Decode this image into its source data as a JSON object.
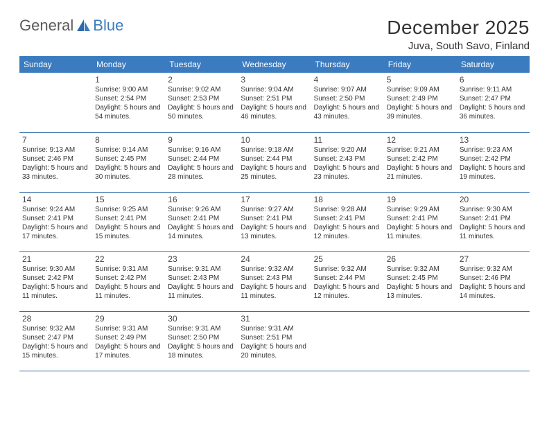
{
  "logo": {
    "text1": "General",
    "text2": "Blue"
  },
  "header": {
    "month": "December 2025",
    "location": "Juva, South Savo, Finland"
  },
  "colors": {
    "header_bg": "#3b7bbf",
    "header_text": "#ffffff",
    "row_border": "#2f6aa8",
    "body_text": "#333333",
    "logo_gray": "#5a5a5a",
    "logo_blue": "#3b7bbf",
    "page_bg": "#ffffff"
  },
  "fonts": {
    "month_size_pt": 21,
    "location_size_pt": 11,
    "weekday_size_pt": 9,
    "daynum_size_pt": 9,
    "cell_size_pt": 7.5
  },
  "calendar": {
    "weekdays": [
      "Sunday",
      "Monday",
      "Tuesday",
      "Wednesday",
      "Thursday",
      "Friday",
      "Saturday"
    ],
    "weeks": [
      [
        null,
        {
          "n": "1",
          "sr": "Sunrise: 9:00 AM",
          "ss": "Sunset: 2:54 PM",
          "dl": "Daylight: 5 hours and 54 minutes."
        },
        {
          "n": "2",
          "sr": "Sunrise: 9:02 AM",
          "ss": "Sunset: 2:53 PM",
          "dl": "Daylight: 5 hours and 50 minutes."
        },
        {
          "n": "3",
          "sr": "Sunrise: 9:04 AM",
          "ss": "Sunset: 2:51 PM",
          "dl": "Daylight: 5 hours and 46 minutes."
        },
        {
          "n": "4",
          "sr": "Sunrise: 9:07 AM",
          "ss": "Sunset: 2:50 PM",
          "dl": "Daylight: 5 hours and 43 minutes."
        },
        {
          "n": "5",
          "sr": "Sunrise: 9:09 AM",
          "ss": "Sunset: 2:49 PM",
          "dl": "Daylight: 5 hours and 39 minutes."
        },
        {
          "n": "6",
          "sr": "Sunrise: 9:11 AM",
          "ss": "Sunset: 2:47 PM",
          "dl": "Daylight: 5 hours and 36 minutes."
        }
      ],
      [
        {
          "n": "7",
          "sr": "Sunrise: 9:13 AM",
          "ss": "Sunset: 2:46 PM",
          "dl": "Daylight: 5 hours and 33 minutes."
        },
        {
          "n": "8",
          "sr": "Sunrise: 9:14 AM",
          "ss": "Sunset: 2:45 PM",
          "dl": "Daylight: 5 hours and 30 minutes."
        },
        {
          "n": "9",
          "sr": "Sunrise: 9:16 AM",
          "ss": "Sunset: 2:44 PM",
          "dl": "Daylight: 5 hours and 28 minutes."
        },
        {
          "n": "10",
          "sr": "Sunrise: 9:18 AM",
          "ss": "Sunset: 2:44 PM",
          "dl": "Daylight: 5 hours and 25 minutes."
        },
        {
          "n": "11",
          "sr": "Sunrise: 9:20 AM",
          "ss": "Sunset: 2:43 PM",
          "dl": "Daylight: 5 hours and 23 minutes."
        },
        {
          "n": "12",
          "sr": "Sunrise: 9:21 AM",
          "ss": "Sunset: 2:42 PM",
          "dl": "Daylight: 5 hours and 21 minutes."
        },
        {
          "n": "13",
          "sr": "Sunrise: 9:23 AM",
          "ss": "Sunset: 2:42 PM",
          "dl": "Daylight: 5 hours and 19 minutes."
        }
      ],
      [
        {
          "n": "14",
          "sr": "Sunrise: 9:24 AM",
          "ss": "Sunset: 2:41 PM",
          "dl": "Daylight: 5 hours and 17 minutes."
        },
        {
          "n": "15",
          "sr": "Sunrise: 9:25 AM",
          "ss": "Sunset: 2:41 PM",
          "dl": "Daylight: 5 hours and 15 minutes."
        },
        {
          "n": "16",
          "sr": "Sunrise: 9:26 AM",
          "ss": "Sunset: 2:41 PM",
          "dl": "Daylight: 5 hours and 14 minutes."
        },
        {
          "n": "17",
          "sr": "Sunrise: 9:27 AM",
          "ss": "Sunset: 2:41 PM",
          "dl": "Daylight: 5 hours and 13 minutes."
        },
        {
          "n": "18",
          "sr": "Sunrise: 9:28 AM",
          "ss": "Sunset: 2:41 PM",
          "dl": "Daylight: 5 hours and 12 minutes."
        },
        {
          "n": "19",
          "sr": "Sunrise: 9:29 AM",
          "ss": "Sunset: 2:41 PM",
          "dl": "Daylight: 5 hours and 11 minutes."
        },
        {
          "n": "20",
          "sr": "Sunrise: 9:30 AM",
          "ss": "Sunset: 2:41 PM",
          "dl": "Daylight: 5 hours and 11 minutes."
        }
      ],
      [
        {
          "n": "21",
          "sr": "Sunrise: 9:30 AM",
          "ss": "Sunset: 2:42 PM",
          "dl": "Daylight: 5 hours and 11 minutes."
        },
        {
          "n": "22",
          "sr": "Sunrise: 9:31 AM",
          "ss": "Sunset: 2:42 PM",
          "dl": "Daylight: 5 hours and 11 minutes."
        },
        {
          "n": "23",
          "sr": "Sunrise: 9:31 AM",
          "ss": "Sunset: 2:43 PM",
          "dl": "Daylight: 5 hours and 11 minutes."
        },
        {
          "n": "24",
          "sr": "Sunrise: 9:32 AM",
          "ss": "Sunset: 2:43 PM",
          "dl": "Daylight: 5 hours and 11 minutes."
        },
        {
          "n": "25",
          "sr": "Sunrise: 9:32 AM",
          "ss": "Sunset: 2:44 PM",
          "dl": "Daylight: 5 hours and 12 minutes."
        },
        {
          "n": "26",
          "sr": "Sunrise: 9:32 AM",
          "ss": "Sunset: 2:45 PM",
          "dl": "Daylight: 5 hours and 13 minutes."
        },
        {
          "n": "27",
          "sr": "Sunrise: 9:32 AM",
          "ss": "Sunset: 2:46 PM",
          "dl": "Daylight: 5 hours and 14 minutes."
        }
      ],
      [
        {
          "n": "28",
          "sr": "Sunrise: 9:32 AM",
          "ss": "Sunset: 2:47 PM",
          "dl": "Daylight: 5 hours and 15 minutes."
        },
        {
          "n": "29",
          "sr": "Sunrise: 9:31 AM",
          "ss": "Sunset: 2:49 PM",
          "dl": "Daylight: 5 hours and 17 minutes."
        },
        {
          "n": "30",
          "sr": "Sunrise: 9:31 AM",
          "ss": "Sunset: 2:50 PM",
          "dl": "Daylight: 5 hours and 18 minutes."
        },
        {
          "n": "31",
          "sr": "Sunrise: 9:31 AM",
          "ss": "Sunset: 2:51 PM",
          "dl": "Daylight: 5 hours and 20 minutes."
        },
        null,
        null,
        null
      ]
    ]
  }
}
